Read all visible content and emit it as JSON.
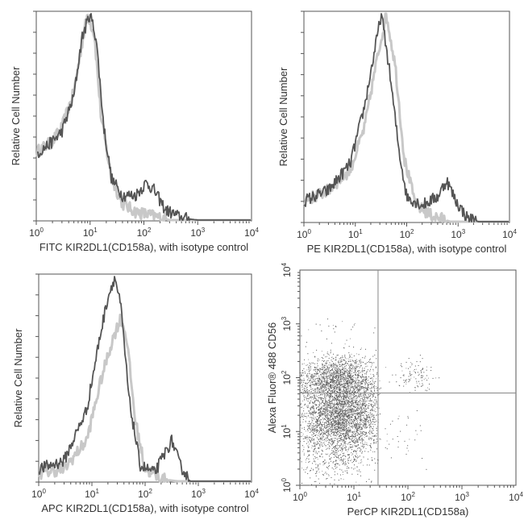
{
  "chart_data": [
    {
      "type": "line",
      "subtype": "histogram-overlay",
      "xlabel": "FITC KIR2DL1(CD158a), with isotype control",
      "ylabel": "Relative Cell Number",
      "xscale": "log",
      "xlim": [
        1,
        10000
      ],
      "x_ticks": [
        1,
        10,
        100,
        1000,
        10000
      ],
      "series": [
        {
          "color": "#c8c8c8",
          "points": [
            [
              1,
              0.33
            ],
            [
              2,
              0.38
            ],
            [
              3,
              0.45
            ],
            [
              5,
              0.62
            ],
            [
              7,
              0.85
            ],
            [
              9,
              1.0
            ],
            [
              12,
              0.9
            ],
            [
              16,
              0.5
            ],
            [
              25,
              0.2
            ],
            [
              40,
              0.08
            ],
            [
              70,
              0.04
            ],
            [
              150,
              0.02
            ],
            [
              300,
              0.0
            ]
          ]
        },
        {
          "color": "#555555",
          "points": [
            [
              1,
              0.32
            ],
            [
              2,
              0.38
            ],
            [
              3,
              0.43
            ],
            [
              5,
              0.6
            ],
            [
              7,
              0.88
            ],
            [
              10,
              1.0
            ],
            [
              13,
              0.88
            ],
            [
              18,
              0.45
            ],
            [
              25,
              0.2
            ],
            [
              40,
              0.12
            ],
            [
              70,
              0.12
            ],
            [
              110,
              0.18
            ],
            [
              150,
              0.15
            ],
            [
              250,
              0.05
            ],
            [
              500,
              0.01
            ],
            [
              1000,
              0.0
            ]
          ]
        }
      ]
    },
    {
      "type": "line",
      "subtype": "histogram-overlay",
      "xlabel": "PE KIR2DL1(CD158a), with isotype control",
      "ylabel": "Relative Cell Number",
      "xscale": "log",
      "xlim": [
        1,
        10000
      ],
      "x_ticks": [
        1,
        10,
        100,
        1000,
        10000
      ],
      "series": [
        {
          "color": "#c8c8c8",
          "points": [
            [
              1,
              0.1
            ],
            [
              3,
              0.15
            ],
            [
              8,
              0.25
            ],
            [
              15,
              0.45
            ],
            [
              25,
              0.75
            ],
            [
              40,
              1.0
            ],
            [
              60,
              0.75
            ],
            [
              90,
              0.3
            ],
            [
              150,
              0.08
            ],
            [
              300,
              0.03
            ],
            [
              700,
              0.0
            ]
          ]
        },
        {
          "color": "#555555",
          "points": [
            [
              1,
              0.1
            ],
            [
              3,
              0.15
            ],
            [
              8,
              0.28
            ],
            [
              15,
              0.55
            ],
            [
              25,
              0.85
            ],
            [
              32,
              1.0
            ],
            [
              45,
              0.75
            ],
            [
              70,
              0.35
            ],
            [
              100,
              0.12
            ],
            [
              200,
              0.08
            ],
            [
              400,
              0.12
            ],
            [
              600,
              0.2
            ],
            [
              900,
              0.1
            ],
            [
              1500,
              0.02
            ],
            [
              2500,
              0.0
            ]
          ]
        }
      ]
    },
    {
      "type": "line",
      "subtype": "histogram-overlay",
      "xlabel": "APC KIR2DL1(CD158a), with isotype control",
      "ylabel": "Relative Cell Number",
      "xscale": "log",
      "xlim": [
        1,
        10000
      ],
      "x_ticks": [
        1,
        10,
        100,
        1000,
        10000
      ],
      "series": [
        {
          "color": "#c8c8c8",
          "points": [
            [
              1,
              0.04
            ],
            [
              3,
              0.06
            ],
            [
              8,
              0.2
            ],
            [
              15,
              0.5
            ],
            [
              25,
              0.7
            ],
            [
              35,
              0.8
            ],
            [
              45,
              0.7
            ],
            [
              65,
              0.3
            ],
            [
              100,
              0.06
            ],
            [
              200,
              0.01
            ],
            [
              400,
              0.0
            ]
          ]
        },
        {
          "color": "#555555",
          "points": [
            [
              1,
              0.06
            ],
            [
              3,
              0.1
            ],
            [
              8,
              0.35
            ],
            [
              14,
              0.7
            ],
            [
              20,
              0.9
            ],
            [
              27,
              1.0
            ],
            [
              35,
              0.85
            ],
            [
              50,
              0.4
            ],
            [
              80,
              0.08
            ],
            [
              150,
              0.04
            ],
            [
              250,
              0.15
            ],
            [
              320,
              0.2
            ],
            [
              450,
              0.08
            ],
            [
              700,
              0.0
            ]
          ]
        }
      ]
    },
    {
      "type": "scatter",
      "xlabel": "PerCP KIR2DL1(CD158a)",
      "ylabel": "Alexa Fluor® 488 CD56",
      "xscale": "log",
      "yscale": "log",
      "xlim": [
        1,
        10000
      ],
      "ylim": [
        1,
        10000
      ],
      "x_ticks": [
        1,
        10,
        100,
        1000,
        10000
      ],
      "y_ticks": [
        1,
        10,
        100,
        1000,
        10000
      ],
      "quadrant_gate": {
        "x": 28,
        "y": 52
      },
      "point_color": "#555555",
      "clusters": [
        {
          "center": [
            5,
            90
          ],
          "spread": [
            0.38,
            0.22
          ],
          "count": 1800
        },
        {
          "center": [
            6,
            18
          ],
          "spread": [
            0.38,
            0.3
          ],
          "count": 2600
        },
        {
          "center": [
            4,
            4
          ],
          "spread": [
            0.4,
            0.3
          ],
          "count": 500
        },
        {
          "center": [
            130,
            110
          ],
          "spread": [
            0.18,
            0.15
          ],
          "count": 110
        },
        {
          "center": [
            80,
            10
          ],
          "spread": [
            0.25,
            0.35
          ],
          "count": 35
        },
        {
          "center": [
            4,
            700
          ],
          "spread": [
            0.35,
            0.15
          ],
          "count": 25
        }
      ]
    }
  ]
}
